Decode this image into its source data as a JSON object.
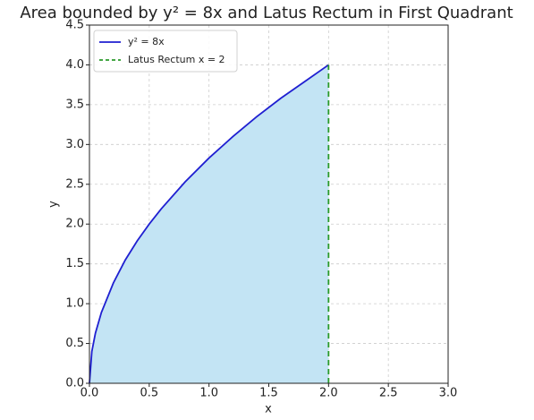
{
  "chart_data": {
    "type": "line",
    "title": "Area bounded by y² = 8x and Latus Rectum in First Quadrant",
    "x_label": "x",
    "y_label": "y",
    "xlim": [
      0,
      3
    ],
    "ylim": [
      0,
      4.5
    ],
    "xticks": [
      {
        "value": 0,
        "label": "0.0"
      },
      0.5,
      {
        "value": 1,
        "label": "1.0"
      },
      1.5,
      {
        "value": 2,
        "label": "2.0"
      },
      2.5,
      {
        "value": 3,
        "label": "3.0"
      }
    ],
    "yticks": [
      {
        "value": 0,
        "label": "0.0"
      },
      0.5,
      {
        "value": 1,
        "label": "1.0"
      },
      1.5,
      {
        "value": 2,
        "label": "2.0"
      },
      2.5,
      {
        "value": 3,
        "label": "3.0"
      },
      3.5,
      {
        "value": 4,
        "label": "4.0"
      },
      4.5
    ],
    "grid": true,
    "legend": "upper left",
    "series": [
      {
        "name": "y² = 8x",
        "color": "#1f1fd1",
        "dash": false,
        "fill": "#c3e4f4",
        "x": [
          0,
          0.02,
          0.05,
          0.1,
          0.2,
          0.3,
          0.4,
          0.5,
          0.6,
          0.8,
          1.0,
          1.2,
          1.4,
          1.6,
          1.8,
          2.0
        ],
        "values": [
          0,
          0.4,
          0.63,
          0.89,
          1.26,
          1.55,
          1.79,
          2,
          2.19,
          2.53,
          2.83,
          3.1,
          3.35,
          3.58,
          3.79,
          4
        ]
      },
      {
        "name": "Latus Rectum x = 2",
        "color": "#2a9a2a",
        "dash": true,
        "x": [
          2,
          2
        ],
        "values": [
          0,
          4
        ]
      }
    ]
  }
}
